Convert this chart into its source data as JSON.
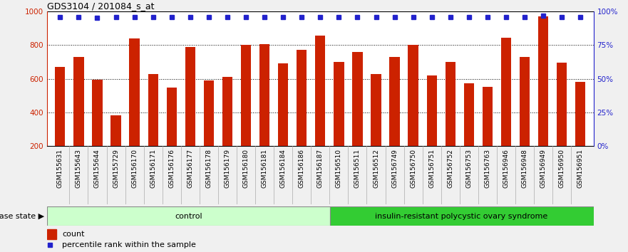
{
  "title": "GDS3104 / 201084_s_at",
  "categories": [
    "GSM155631",
    "GSM155643",
    "GSM155644",
    "GSM155729",
    "GSM156170",
    "GSM156171",
    "GSM156176",
    "GSM156177",
    "GSM156178",
    "GSM156179",
    "GSM156180",
    "GSM156181",
    "GSM156184",
    "GSM156186",
    "GSM156187",
    "GSM156510",
    "GSM156511",
    "GSM156512",
    "GSM156749",
    "GSM156750",
    "GSM156751",
    "GSM156752",
    "GSM156753",
    "GSM156763",
    "GSM156946",
    "GSM156948",
    "GSM156949",
    "GSM156950",
    "GSM156951"
  ],
  "bar_values": [
    670,
    730,
    595,
    385,
    840,
    628,
    548,
    787,
    590,
    610,
    800,
    807,
    690,
    770,
    858,
    700,
    760,
    630,
    730,
    800,
    620,
    700,
    575,
    550,
    843,
    730,
    970,
    695,
    580
  ],
  "percentile_values": [
    96,
    96,
    95,
    96,
    96,
    96,
    96,
    96,
    96,
    96,
    96,
    96,
    96,
    96,
    96,
    96,
    96,
    96,
    96,
    96,
    96,
    96,
    96,
    96,
    96,
    96,
    97,
    96,
    96
  ],
  "bar_color": "#cc2200",
  "percentile_color": "#2222cc",
  "ylim_left": [
    200,
    1000
  ],
  "ylim_right": [
    0,
    100
  ],
  "yticks_left": [
    200,
    400,
    600,
    800,
    1000
  ],
  "yticks_right": [
    0,
    25,
    50,
    75,
    100
  ],
  "grid_values": [
    400,
    600,
    800
  ],
  "control_count": 15,
  "control_label": "control",
  "disease_label": "insulin-resistant polycystic ovary syndrome",
  "control_bg": "#ccffcc",
  "disease_bg": "#33cc33",
  "xlabel_disease_state": "disease state",
  "legend_count": "count",
  "legend_percentile": "percentile rank within the sample",
  "bar_width": 0.55,
  "figure_bg": "#f0f0f0",
  "label_area_bg": "#d4d4d4"
}
